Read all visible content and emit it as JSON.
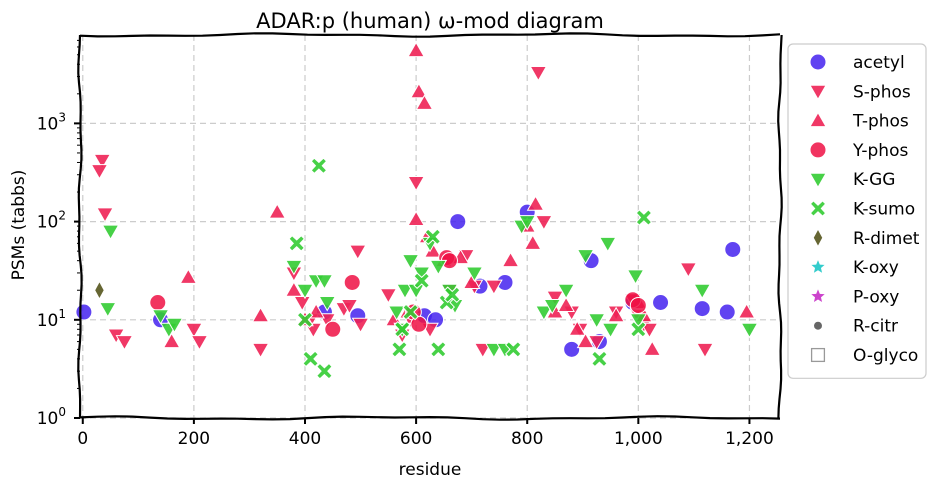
{
  "chart_data": {
    "type": "scatter",
    "title": "ADAR:p (human) ω-mod diagram",
    "xlabel": "residue",
    "ylabel": "PSMs (tabbs)",
    "xlim": [
      -5,
      1255
    ],
    "ylim_log10": [
      0,
      3.9
    ],
    "log_y": true,
    "grid": true,
    "legend_position": "outside-right",
    "x_ticks": [
      {
        "value": 0,
        "label": "0"
      },
      {
        "value": 200,
        "label": "200"
      },
      {
        "value": 400,
        "label": "400"
      },
      {
        "value": 600,
        "label": "600"
      },
      {
        "value": 800,
        "label": "800"
      },
      {
        "value": 1000,
        "label": "1,000"
      },
      {
        "value": 1200,
        "label": "1,200"
      }
    ],
    "y_ticks": [
      {
        "value": 1,
        "base": "10",
        "exp": "0"
      },
      {
        "value": 10,
        "base": "10",
        "exp": "1"
      },
      {
        "value": 100,
        "base": "10",
        "exp": "2"
      },
      {
        "value": 1000,
        "base": "10",
        "exp": "3"
      }
    ],
    "series": [
      {
        "name": "acetyl",
        "marker": "circle",
        "color": "#4422ee",
        "points": [
          [
            2,
            12
          ],
          [
            140,
            10
          ],
          [
            435,
            12
          ],
          [
            495,
            11
          ],
          [
            615,
            11
          ],
          [
            635,
            10
          ],
          [
            675,
            100
          ],
          [
            715,
            22
          ],
          [
            760,
            24
          ],
          [
            800,
            125
          ],
          [
            880,
            5
          ],
          [
            915,
            40
          ],
          [
            930,
            6
          ],
          [
            990,
            15
          ],
          [
            1040,
            15
          ],
          [
            1115,
            13
          ],
          [
            1160,
            12
          ],
          [
            1170,
            52
          ]
        ]
      },
      {
        "name": "S-phos",
        "marker": "triangle-down",
        "color": "#ee2255",
        "points": [
          [
            35,
            420
          ],
          [
            30,
            330
          ],
          [
            40,
            120
          ],
          [
            60,
            7
          ],
          [
            75,
            6
          ],
          [
            200,
            8
          ],
          [
            210,
            6
          ],
          [
            320,
            5
          ],
          [
            380,
            30
          ],
          [
            395,
            15
          ],
          [
            410,
            10
          ],
          [
            415,
            8
          ],
          [
            440,
            10
          ],
          [
            470,
            13
          ],
          [
            480,
            14
          ],
          [
            495,
            50
          ],
          [
            500,
            9
          ],
          [
            550,
            18
          ],
          [
            575,
            7
          ],
          [
            590,
            10
          ],
          [
            600,
            250
          ],
          [
            625,
            8
          ],
          [
            660,
            20
          ],
          [
            690,
            45
          ],
          [
            705,
            22
          ],
          [
            720,
            5
          ],
          [
            740,
            22
          ],
          [
            820,
            3300
          ],
          [
            830,
            100
          ],
          [
            850,
            17
          ],
          [
            880,
            12
          ],
          [
            895,
            8
          ],
          [
            925,
            6
          ],
          [
            960,
            12
          ],
          [
            990,
            16
          ],
          [
            1000,
            11
          ],
          [
            1010,
            9
          ],
          [
            1020,
            8
          ],
          [
            1090,
            33
          ],
          [
            1120,
            5
          ]
        ]
      },
      {
        "name": "T-phos",
        "marker": "triangle-up",
        "color": "#ee2255",
        "points": [
          [
            160,
            6
          ],
          [
            190,
            27
          ],
          [
            320,
            11
          ],
          [
            350,
            125
          ],
          [
            380,
            20
          ],
          [
            400,
            10
          ],
          [
            420,
            12
          ],
          [
            560,
            10
          ],
          [
            585,
            12
          ],
          [
            600,
            5500
          ],
          [
            605,
            2100
          ],
          [
            615,
            1600
          ],
          [
            600,
            105
          ],
          [
            620,
            70
          ],
          [
            630,
            50
          ],
          [
            650,
            40
          ],
          [
            680,
            43
          ],
          [
            700,
            24
          ],
          [
            770,
            40
          ],
          [
            800,
            90
          ],
          [
            815,
            150
          ],
          [
            810,
            60
          ],
          [
            850,
            12
          ],
          [
            870,
            14
          ],
          [
            890,
            8
          ],
          [
            905,
            6
          ],
          [
            960,
            11
          ],
          [
            1000,
            15
          ],
          [
            1010,
            11
          ],
          [
            1025,
            5
          ],
          [
            1195,
            12
          ]
        ]
      },
      {
        "name": "Y-phos",
        "marker": "circle",
        "color": "#ee1144",
        "points": [
          [
            135,
            15
          ],
          [
            450,
            8
          ],
          [
            485,
            24
          ],
          [
            595,
            12
          ],
          [
            605,
            9
          ],
          [
            655,
            43
          ],
          [
            660,
            40
          ],
          [
            990,
            16
          ],
          [
            1000,
            14
          ]
        ]
      },
      {
        "name": "K-GG",
        "marker": "triangle-down",
        "color": "#33cc33",
        "points": [
          [
            50,
            80
          ],
          [
            45,
            13
          ],
          [
            140,
            11
          ],
          [
            155,
            8
          ],
          [
            165,
            9
          ],
          [
            380,
            35
          ],
          [
            400,
            20
          ],
          [
            420,
            25
          ],
          [
            435,
            25
          ],
          [
            440,
            15
          ],
          [
            565,
            12
          ],
          [
            575,
            8
          ],
          [
            580,
            20
          ],
          [
            590,
            40
          ],
          [
            600,
            20
          ],
          [
            610,
            30
          ],
          [
            625,
            60
          ],
          [
            640,
            35
          ],
          [
            660,
            20
          ],
          [
            670,
            14
          ],
          [
            705,
            30
          ],
          [
            740,
            5
          ],
          [
            760,
            5
          ],
          [
            790,
            90
          ],
          [
            800,
            100
          ],
          [
            830,
            12
          ],
          [
            845,
            14
          ],
          [
            870,
            20
          ],
          [
            905,
            45
          ],
          [
            925,
            10
          ],
          [
            945,
            60
          ],
          [
            950,
            8
          ],
          [
            995,
            28
          ],
          [
            1000,
            10
          ],
          [
            1115,
            20
          ],
          [
            1200,
            8
          ]
        ]
      },
      {
        "name": "K-sumo",
        "marker": "x",
        "color": "#33cc33",
        "points": [
          [
            385,
            60
          ],
          [
            400,
            10
          ],
          [
            410,
            4
          ],
          [
            425,
            370
          ],
          [
            435,
            3
          ],
          [
            570,
            5
          ],
          [
            575,
            8
          ],
          [
            590,
            12
          ],
          [
            610,
            25
          ],
          [
            630,
            70
          ],
          [
            640,
            5
          ],
          [
            655,
            15
          ],
          [
            665,
            18
          ],
          [
            775,
            5
          ],
          [
            930,
            4
          ],
          [
            1000,
            8
          ],
          [
            1010,
            110
          ]
        ]
      },
      {
        "name": "R-dimet",
        "marker": "diamond",
        "color": "#666633",
        "points": [
          [
            30,
            20
          ]
        ]
      },
      {
        "name": "K-oxy",
        "marker": "star",
        "color": "#33cccc",
        "points": []
      },
      {
        "name": "P-oxy",
        "marker": "star",
        "color": "#cc44cc",
        "points": []
      },
      {
        "name": "R-citr",
        "marker": "dot",
        "color": "#666666",
        "points": []
      },
      {
        "name": "O-glyco",
        "marker": "square-open",
        "color": "#999999",
        "points": []
      }
    ]
  }
}
